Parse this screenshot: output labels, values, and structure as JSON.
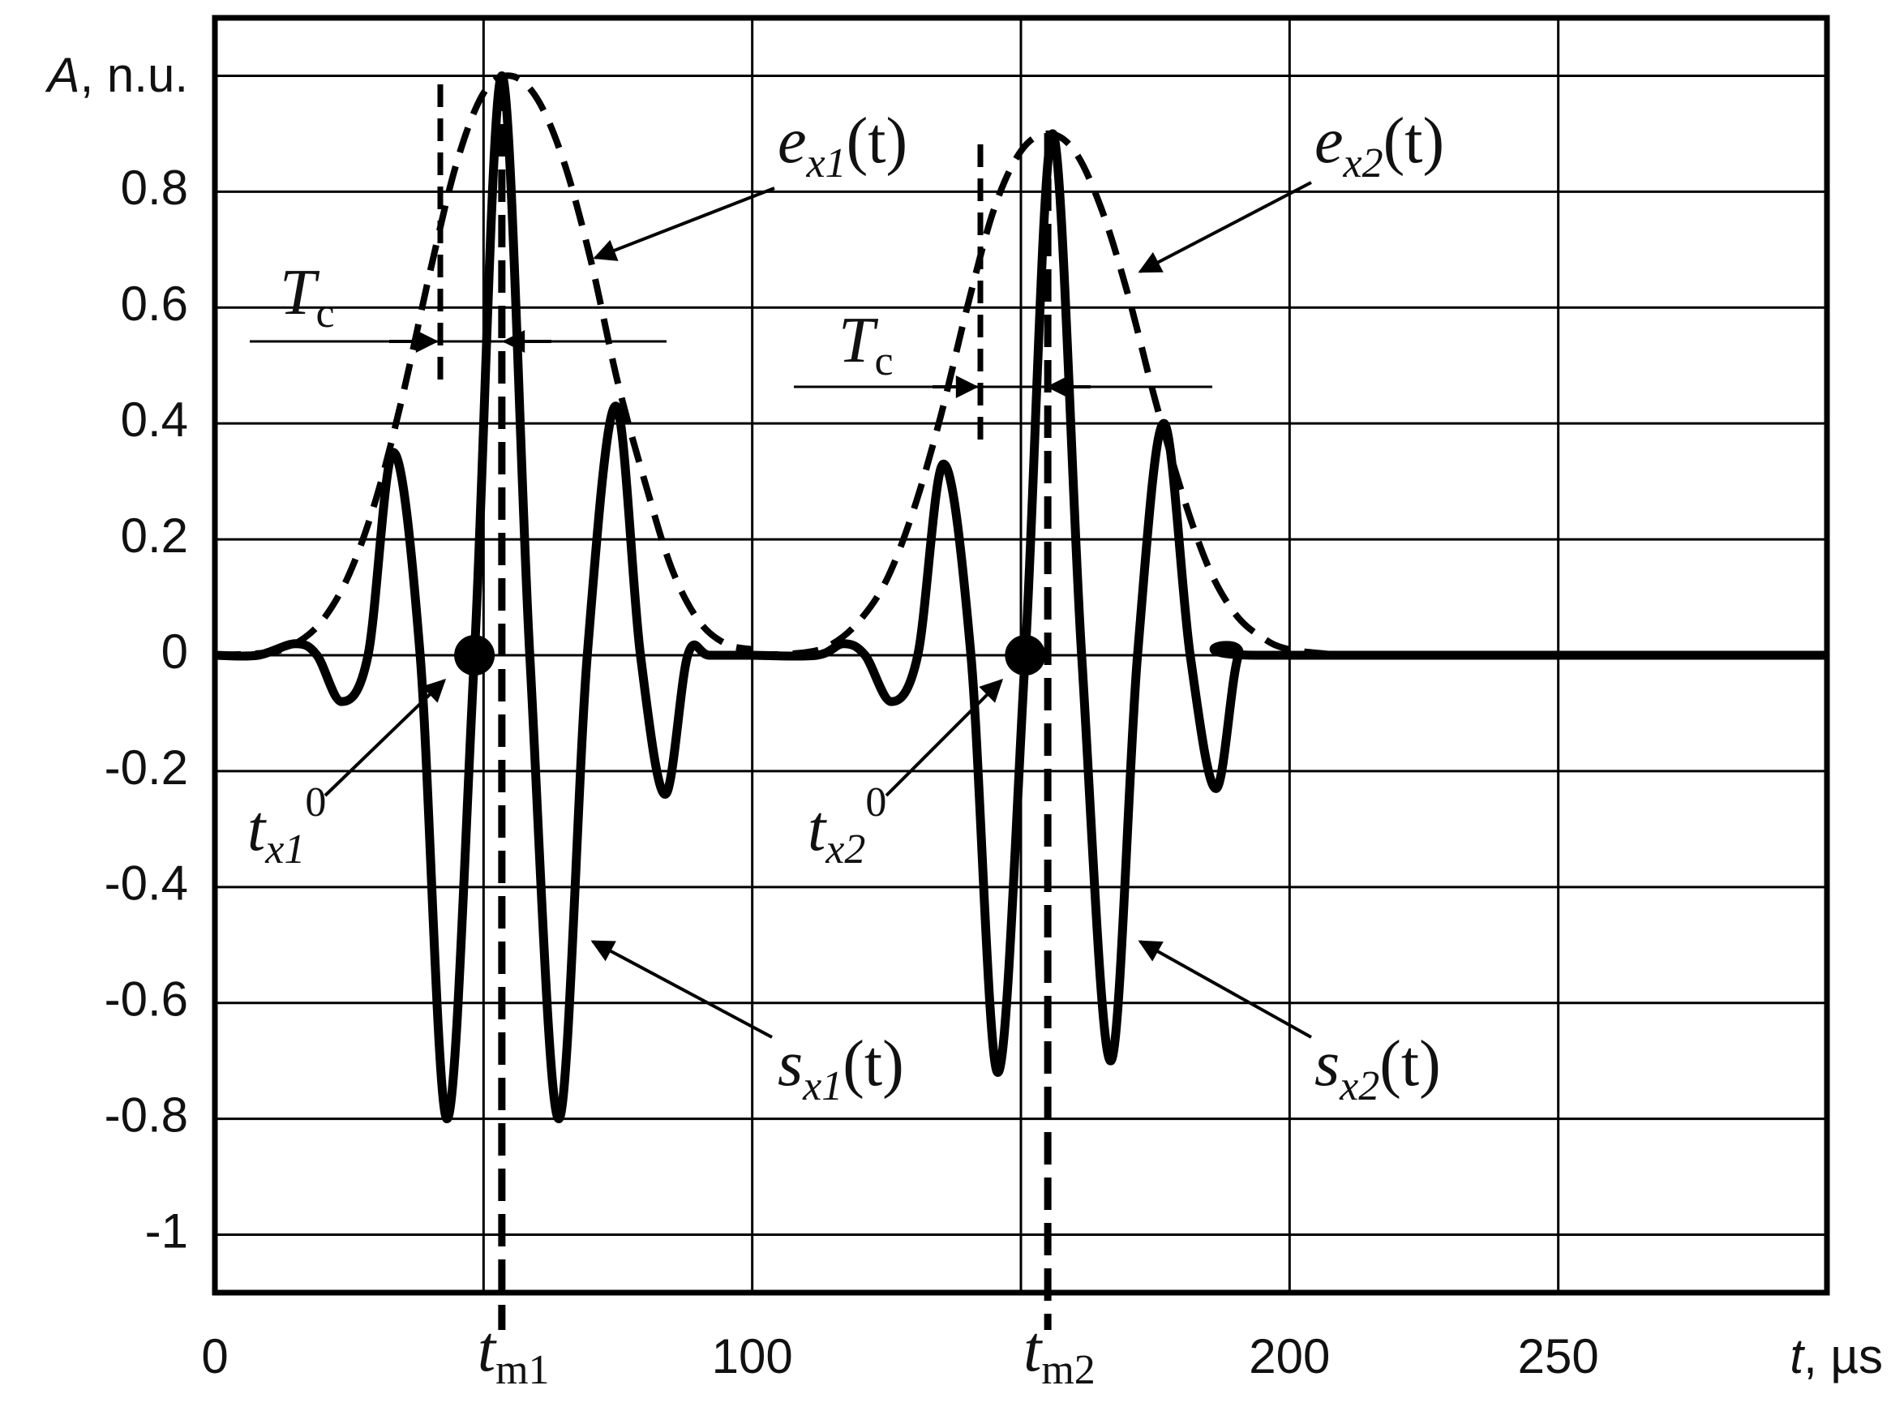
{
  "chart_data": {
    "type": "line",
    "xlim": [
      0,
      300
    ],
    "ylim": [
      -1.1,
      1.1
    ],
    "xticks": [
      0,
      {
        "value": 50,
        "label": null
      },
      100,
      {
        "value": 150,
        "label": null
      },
      200,
      250
    ],
    "yticks": [
      -1,
      -0.8,
      -0.6,
      -0.4,
      -0.2,
      0,
      0.2,
      0.4,
      0.6,
      0.8,
      {
        "value": 1,
        "label": null
      }
    ],
    "grid": true,
    "y_label": [
      "A",
      ", n.u."
    ],
    "x_label": [
      "t",
      ", µs"
    ],
    "series": [
      {
        "label": [
          "s",
          "x1",
          "(t)"
        ],
        "color": "#000000",
        "style": "solid",
        "x": [
          0,
          8,
          15,
          19,
          23.6,
          28.5,
          33.2,
          38.2,
          43.2,
          48.3,
          53.4,
          58.6,
          64,
          69.3,
          74.6,
          79.2,
          83.8,
          88,
          92,
          100
        ],
        "values": [
          0,
          0,
          0.02,
          0,
          -0.08,
          0,
          0.35,
          0,
          -0.8,
          0,
          1.0,
          0,
          -0.8,
          0,
          0.43,
          0,
          -0.24,
          0,
          0,
          0
        ]
      },
      {
        "label": [
          "e",
          "x1",
          "(t)"
        ],
        "color": "#000000",
        "style": "dashed",
        "x": [
          0,
          10,
          15,
          20,
          25,
          30,
          35,
          40,
          45,
          50,
          55,
          60,
          65,
          70,
          75,
          80,
          85,
          90,
          95,
          100
        ],
        "values": [
          0,
          0.005,
          0.02,
          0.06,
          0.14,
          0.27,
          0.45,
          0.66,
          0.85,
          0.97,
          1.0,
          0.96,
          0.85,
          0.68,
          0.47,
          0.3,
          0.15,
          0.06,
          0.02,
          0.01
        ]
      },
      {
        "label": [
          "s",
          "x2",
          "(t)"
        ],
        "color": "#000000",
        "style": "solid",
        "x": [
          100,
          112,
          117,
          121,
          125.9,
          130.8,
          135.6,
          140.7,
          145.7,
          150.8,
          155.9,
          161.3,
          166.7,
          171.7,
          176.6,
          181.5,
          186.3,
          190.5,
          195,
          300
        ],
        "values": [
          0,
          0,
          0.02,
          0,
          -0.08,
          0,
          0.33,
          0,
          -0.72,
          0,
          0.9,
          0,
          -0.7,
          0,
          0.4,
          0,
          -0.23,
          0,
          0,
          0
        ]
      },
      {
        "label": [
          "e",
          "x2",
          "(t)"
        ],
        "color": "#000000",
        "style": "dashed",
        "x": [
          100,
          110,
          115,
          120,
          125,
          130,
          135,
          140,
          145,
          150,
          155,
          160,
          165,
          170,
          175,
          180,
          185,
          190,
          195,
          200,
          210
        ],
        "values": [
          0,
          0.005,
          0.02,
          0.06,
          0.13,
          0.25,
          0.41,
          0.6,
          0.77,
          0.87,
          0.9,
          0.87,
          0.77,
          0.62,
          0.44,
          0.28,
          0.15,
          0.07,
          0.03,
          0.01,
          0
        ]
      }
    ],
    "markers": [
      {
        "x": 53.4,
        "label": [
          "t",
          "m1"
        ]
      },
      {
        "x": 155,
        "label": [
          "t",
          "m2"
        ]
      }
    ],
    "crossings": [
      {
        "x": 48.3,
        "y": 0,
        "label": [
          "t",
          "x1",
          "0"
        ]
      },
      {
        "x": 150.8,
        "y": 0,
        "label": [
          "t",
          "x2",
          "0"
        ]
      }
    ],
    "period_marks": [
      {
        "label": [
          "T",
          "c"
        ]
      },
      {
        "label": [
          "T",
          "c"
        ]
      }
    ]
  }
}
